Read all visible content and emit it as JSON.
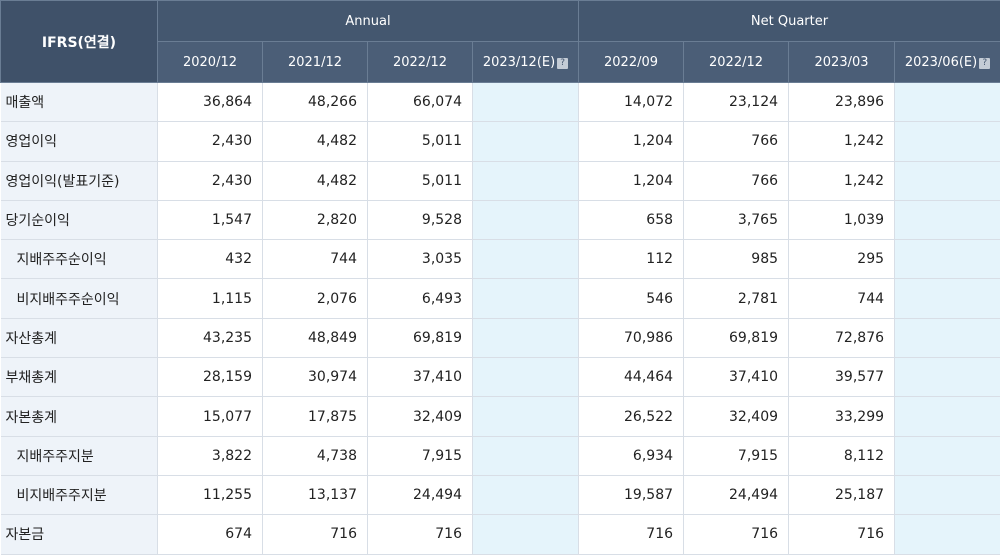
{
  "table": {
    "corner_label": "IFRS(연결)",
    "group_annual": "Annual",
    "group_quarter": "Net Quarter",
    "annual_cols": [
      {
        "label": "2020/12",
        "estimate": false
      },
      {
        "label": "2021/12",
        "estimate": false
      },
      {
        "label": "2022/12",
        "estimate": false
      },
      {
        "label": "2023/12(E)",
        "estimate": true
      }
    ],
    "quarter_cols": [
      {
        "label": "2022/09",
        "estimate": false
      },
      {
        "label": "2022/12",
        "estimate": false
      },
      {
        "label": "2023/03",
        "estimate": false
      },
      {
        "label": "2023/06(E)",
        "estimate": true
      }
    ],
    "estimate_icon": "help-icon",
    "rows": [
      {
        "label": "매출액",
        "sub": false,
        "annual": [
          "36,864",
          "48,266",
          "66,074",
          ""
        ],
        "quarter": [
          "14,072",
          "23,124",
          "23,896",
          ""
        ]
      },
      {
        "label": "영업이익",
        "sub": false,
        "annual": [
          "2,430",
          "4,482",
          "5,011",
          ""
        ],
        "quarter": [
          "1,204",
          "766",
          "1,242",
          ""
        ]
      },
      {
        "label": "영업이익(발표기준)",
        "sub": false,
        "annual": [
          "2,430",
          "4,482",
          "5,011",
          ""
        ],
        "quarter": [
          "1,204",
          "766",
          "1,242",
          ""
        ]
      },
      {
        "label": "당기순이익",
        "sub": false,
        "annual": [
          "1,547",
          "2,820",
          "9,528",
          ""
        ],
        "quarter": [
          "658",
          "3,765",
          "1,039",
          ""
        ]
      },
      {
        "label": "지배주주순이익",
        "sub": true,
        "annual": [
          "432",
          "744",
          "3,035",
          ""
        ],
        "quarter": [
          "112",
          "985",
          "295",
          ""
        ]
      },
      {
        "label": "비지배주주순이익",
        "sub": true,
        "annual": [
          "1,115",
          "2,076",
          "6,493",
          ""
        ],
        "quarter": [
          "546",
          "2,781",
          "744",
          ""
        ]
      },
      {
        "label": "자산총계",
        "sub": false,
        "annual": [
          "43,235",
          "48,849",
          "69,819",
          ""
        ],
        "quarter": [
          "70,986",
          "69,819",
          "72,876",
          ""
        ]
      },
      {
        "label": "부채총계",
        "sub": false,
        "annual": [
          "28,159",
          "30,974",
          "37,410",
          ""
        ],
        "quarter": [
          "44,464",
          "37,410",
          "39,577",
          ""
        ]
      },
      {
        "label": "자본총계",
        "sub": false,
        "annual": [
          "15,077",
          "17,875",
          "32,409",
          ""
        ],
        "quarter": [
          "26,522",
          "32,409",
          "33,299",
          ""
        ]
      },
      {
        "label": "지배주주지분",
        "sub": true,
        "annual": [
          "3,822",
          "4,738",
          "7,915",
          ""
        ],
        "quarter": [
          "6,934",
          "7,915",
          "8,112",
          ""
        ]
      },
      {
        "label": "비지배주주지분",
        "sub": true,
        "annual": [
          "11,255",
          "13,137",
          "24,494",
          ""
        ],
        "quarter": [
          "19,587",
          "24,494",
          "25,187",
          ""
        ]
      },
      {
        "label": "자본금",
        "sub": false,
        "annual": [
          "674",
          "716",
          "716",
          ""
        ],
        "quarter": [
          "716",
          "716",
          "716",
          ""
        ]
      }
    ]
  }
}
